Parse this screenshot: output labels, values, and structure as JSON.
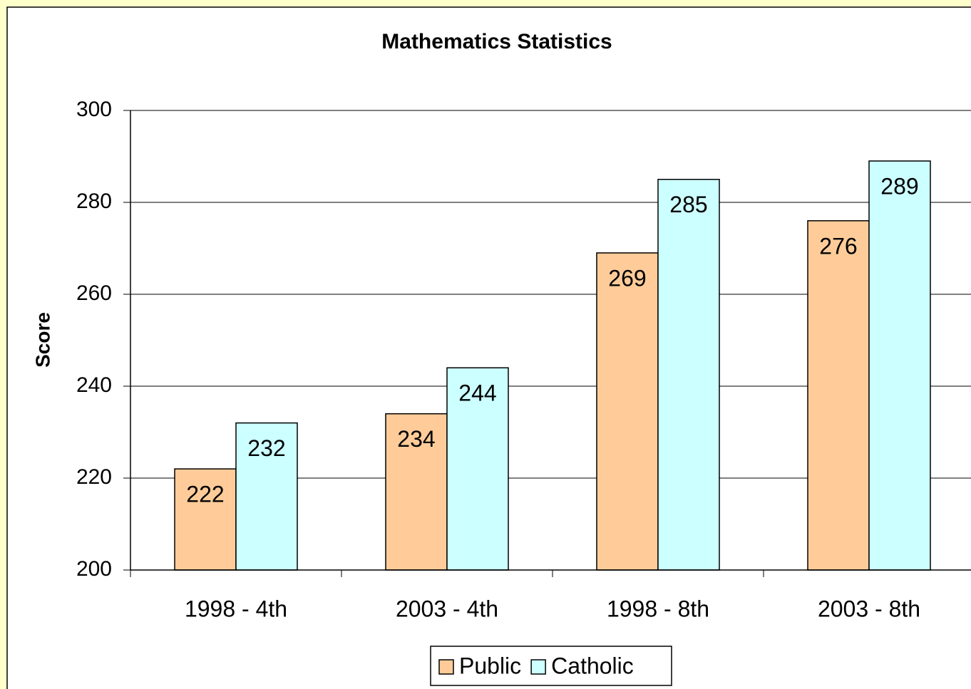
{
  "chart_data": {
    "type": "bar",
    "title": "Mathematics Statistics",
    "y_label": "Score",
    "categories": [
      "1998 - 4th",
      "2003 - 4th",
      "1998 - 8th",
      "2003 - 8th"
    ],
    "series": [
      {
        "name": "Public",
        "color": "#FFCC99",
        "values": [
          222,
          234,
          269,
          276
        ]
      },
      {
        "name": "Catholic",
        "color": "#CCFFFF",
        "values": [
          232,
          244,
          285,
          289
        ]
      }
    ],
    "ylim": [
      200,
      300
    ],
    "yticks": [
      200,
      220,
      240,
      260,
      280,
      300
    ],
    "grid": true,
    "legend": "bottom"
  }
}
